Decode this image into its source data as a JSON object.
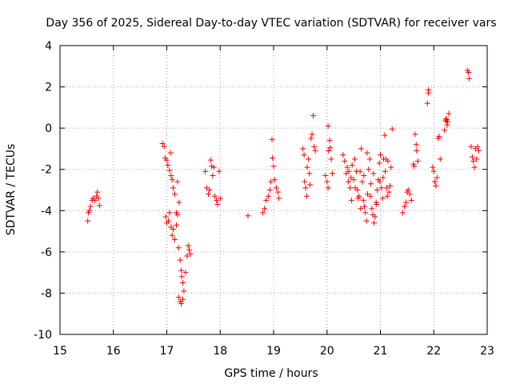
{
  "chart_data": {
    "type": "scatter",
    "title": "Day 356 of 2025, Sidereal Day-to-day VTEC variation (SDTVAR) for receiver vars",
    "xlabel": "GPS time / hours",
    "ylabel": "SDTVAR / TECUs",
    "xlim": [
      15,
      23
    ],
    "ylim": [
      -10,
      4
    ],
    "xticks": [
      15,
      16,
      17,
      18,
      19,
      20,
      21,
      22,
      23
    ],
    "yticks": [
      -10,
      -8,
      -6,
      -4,
      -2,
      0,
      2,
      4
    ],
    "xtick_labels": [
      "15",
      "16",
      "17",
      "18",
      "19",
      "20",
      "21",
      "22",
      "23"
    ],
    "ytick_labels": [
      "-10",
      "-8",
      "-6",
      "-4",
      "-2",
      "0",
      "2",
      "4"
    ],
    "grid": true,
    "marker": "+",
    "color": "#ff0000",
    "series": [
      {
        "name": "vars",
        "points": [
          [
            15.52,
            -4.5
          ],
          [
            15.53,
            -4.1
          ],
          [
            15.55,
            -4.0
          ],
          [
            15.57,
            -3.8
          ],
          [
            15.6,
            -3.5
          ],
          [
            15.62,
            -3.4
          ],
          [
            15.65,
            -3.5
          ],
          [
            15.68,
            -3.3
          ],
          [
            15.7,
            -3.1
          ],
          [
            15.72,
            -3.4
          ],
          [
            15.74,
            -3.75
          ],
          [
            16.92,
            -0.75
          ],
          [
            16.95,
            -0.9
          ],
          [
            16.97,
            -1.45
          ],
          [
            17.0,
            -1.55
          ],
          [
            17.02,
            -1.8
          ],
          [
            17.05,
            -2.05
          ],
          [
            17.07,
            -1.2
          ],
          [
            17.08,
            -2.3
          ],
          [
            17.1,
            -2.5
          ],
          [
            17.12,
            -2.9
          ],
          [
            17.15,
            -3.2
          ],
          [
            16.98,
            -4.3
          ],
          [
            17.0,
            -4.6
          ],
          [
            17.03,
            -4.5
          ],
          [
            17.05,
            -4.1
          ],
          [
            17.08,
            -4.8
          ],
          [
            17.1,
            -5.2
          ],
          [
            17.12,
            -4.9
          ],
          [
            17.15,
            -5.4
          ],
          [
            17.18,
            -4.7
          ],
          [
            17.2,
            -4.2
          ],
          [
            17.22,
            -5.8
          ],
          [
            17.25,
            -6.4
          ],
          [
            17.27,
            -6.9
          ],
          [
            17.3,
            -7.5
          ],
          [
            17.32,
            -7.9
          ],
          [
            17.22,
            -8.2
          ],
          [
            17.25,
            -8.4
          ],
          [
            17.27,
            -8.5
          ],
          [
            17.3,
            -8.3
          ],
          [
            17.28,
            -7.2
          ],
          [
            17.35,
            -7.0
          ],
          [
            17.38,
            -6.2
          ],
          [
            17.4,
            -5.7
          ],
          [
            17.42,
            -5.9
          ],
          [
            17.44,
            -6.1
          ],
          [
            17.2,
            -2.6
          ],
          [
            17.23,
            -3.6
          ],
          [
            17.18,
            -4.1
          ],
          [
            17.72,
            -2.1
          ],
          [
            17.75,
            -2.9
          ],
          [
            17.78,
            -3.2
          ],
          [
            17.8,
            -3.0
          ],
          [
            17.82,
            -1.55
          ],
          [
            17.84,
            -1.85
          ],
          [
            17.86,
            -2.3
          ],
          [
            17.88,
            -1.9
          ],
          [
            17.9,
            -3.3
          ],
          [
            17.93,
            -3.5
          ],
          [
            17.95,
            -3.7
          ],
          [
            17.98,
            -2.1
          ],
          [
            18.0,
            -3.4
          ],
          [
            18.52,
            -4.25
          ],
          [
            18.8,
            -4.1
          ],
          [
            18.83,
            -3.9
          ],
          [
            18.86,
            -3.5
          ],
          [
            18.9,
            -3.3
          ],
          [
            18.93,
            -3.0
          ],
          [
            18.95,
            -2.6
          ],
          [
            18.97,
            -0.55
          ],
          [
            18.98,
            -1.45
          ],
          [
            19.0,
            -1.85
          ],
          [
            19.02,
            -2.5
          ],
          [
            19.05,
            -2.9
          ],
          [
            19.08,
            -3.1
          ],
          [
            19.1,
            -3.4
          ],
          [
            19.55,
            -1.0
          ],
          [
            19.57,
            -1.3
          ],
          [
            19.58,
            -2.6
          ],
          [
            19.6,
            -2.9
          ],
          [
            19.62,
            -3.3
          ],
          [
            19.63,
            -1.9
          ],
          [
            19.65,
            -1.5
          ],
          [
            19.67,
            -2.2
          ],
          [
            19.68,
            -2.75
          ],
          [
            19.7,
            -0.5
          ],
          [
            19.72,
            -0.3
          ],
          [
            19.74,
            0.6
          ],
          [
            19.76,
            -0.9
          ],
          [
            19.78,
            -1.1
          ],
          [
            19.97,
            -2.3
          ],
          [
            20.0,
            -2.6
          ],
          [
            20.02,
            -2.9
          ],
          [
            20.03,
            -1.1
          ],
          [
            20.05,
            -0.6
          ],
          [
            20.06,
            -0.95
          ],
          [
            20.08,
            -1.5
          ],
          [
            20.1,
            -2.2
          ],
          [
            20.02,
            0.1
          ],
          [
            20.3,
            -1.3
          ],
          [
            20.33,
            -1.6
          ],
          [
            20.36,
            -2.2
          ],
          [
            20.4,
            -2.6
          ],
          [
            20.43,
            -2.9
          ],
          [
            20.45,
            -2.4
          ],
          [
            20.47,
            -1.8
          ],
          [
            20.5,
            -2.5
          ],
          [
            20.52,
            -1.5
          ],
          [
            20.55,
            -2.1
          ],
          [
            20.57,
            -3.0
          ],
          [
            20.6,
            -3.3
          ],
          [
            20.62,
            -2.1
          ],
          [
            20.64,
            -1.0
          ],
          [
            20.66,
            -2.6
          ],
          [
            20.68,
            -3.5
          ],
          [
            20.7,
            -3.8
          ],
          [
            20.72,
            -4.1
          ],
          [
            20.74,
            -4.5
          ],
          [
            20.76,
            -3.2
          ],
          [
            20.78,
            -2.0
          ],
          [
            20.8,
            -1.5
          ],
          [
            20.82,
            -2.7
          ],
          [
            20.84,
            -3.9
          ],
          [
            20.86,
            -4.2
          ],
          [
            20.88,
            -4.6
          ],
          [
            20.9,
            -4.3
          ],
          [
            20.92,
            -3.6
          ],
          [
            20.94,
            -3.0
          ],
          [
            20.96,
            -2.5
          ],
          [
            20.98,
            -1.7
          ],
          [
            21.0,
            -1.3
          ],
          [
            21.02,
            -2.9
          ],
          [
            21.04,
            -3.4
          ],
          [
            21.06,
            -1.5
          ],
          [
            21.08,
            -0.35
          ],
          [
            21.1,
            -1.5
          ],
          [
            21.12,
            -2.9
          ],
          [
            21.14,
            -1.6
          ],
          [
            21.16,
            -3.1
          ],
          [
            21.18,
            -2.8
          ],
          [
            21.2,
            -1.9
          ],
          [
            21.22,
            -0.05
          ],
          [
            20.58,
            -3.4
          ],
          [
            20.63,
            -3.9
          ],
          [
            20.69,
            -2.3
          ],
          [
            20.75,
            -1.2
          ],
          [
            20.81,
            -3.3
          ],
          [
            20.87,
            -2.2
          ],
          [
            20.93,
            -3.7
          ],
          [
            20.99,
            -2.6
          ],
          [
            20.46,
            -3.5
          ],
          [
            20.53,
            -2.9
          ],
          [
            20.41,
            -2.1
          ],
          [
            20.38,
            -1.9
          ],
          [
            21.05,
            -2.4
          ],
          [
            21.09,
            -2.1
          ],
          [
            21.13,
            -3.3
          ],
          [
            21.42,
            -4.1
          ],
          [
            21.45,
            -3.8
          ],
          [
            21.48,
            -3.6
          ],
          [
            21.5,
            -3.1
          ],
          [
            21.52,
            -3.0
          ],
          [
            21.55,
            -3.2
          ],
          [
            21.58,
            -3.5
          ],
          [
            21.62,
            -1.75
          ],
          [
            21.63,
            -1.85
          ],
          [
            21.65,
            -0.3
          ],
          [
            21.67,
            -0.8
          ],
          [
            21.68,
            -1.1
          ],
          [
            21.7,
            -1.6
          ],
          [
            21.88,
            1.2
          ],
          [
            21.9,
            1.7
          ],
          [
            21.9,
            1.85
          ],
          [
            21.98,
            -1.9
          ],
          [
            22.0,
            -2.1
          ],
          [
            22.02,
            -2.6
          ],
          [
            22.04,
            -2.8
          ],
          [
            22.06,
            -2.4
          ],
          [
            22.08,
            -0.5
          ],
          [
            22.1,
            -0.4
          ],
          [
            22.12,
            -1.5
          ],
          [
            22.2,
            -0.1
          ],
          [
            22.22,
            0.35
          ],
          [
            22.24,
            0.4
          ],
          [
            22.26,
            0.3
          ],
          [
            22.28,
            0.7
          ],
          [
            22.25,
            0.15
          ],
          [
            22.23,
            0.45
          ],
          [
            22.63,
            2.8
          ],
          [
            22.65,
            2.7
          ],
          [
            22.66,
            2.4
          ],
          [
            22.7,
            -0.9
          ],
          [
            22.72,
            -1.4
          ],
          [
            22.74,
            -1.6
          ],
          [
            22.76,
            -1.9
          ],
          [
            22.78,
            -1.0
          ],
          [
            22.8,
            -1.5
          ],
          [
            22.82,
            -0.9
          ],
          [
            22.84,
            -1.1
          ]
        ]
      }
    ]
  }
}
